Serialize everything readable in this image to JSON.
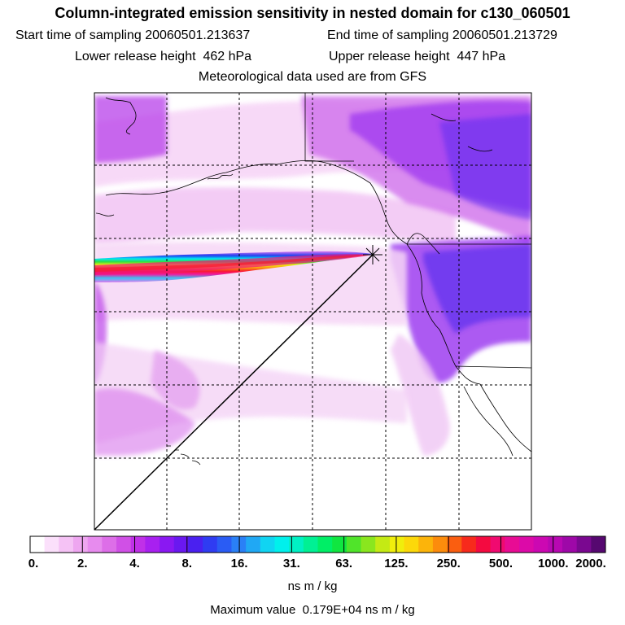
{
  "header": {
    "title": "Column-integrated emission sensitivity in nested domain for c130_060501",
    "start_label": "Start time of sampling",
    "start_value": "20060501.213637",
    "end_label": "End time of sampling",
    "end_value": "20060501.213729",
    "lower_label": "Lower release height",
    "lower_value": "462 hPa",
    "upper_label": "Upper release height",
    "upper_value": "447 hPa",
    "met_text": "Meteorological data used are from GFS"
  },
  "colorbar": {
    "labels": [
      "0.",
      "2.",
      "4.",
      "8.",
      "16.",
      "31.",
      "63.",
      "125.",
      "250.",
      "500.",
      "1000.",
      "2000."
    ],
    "colors": [
      "#ffffff",
      "#fbe0fb",
      "#f5c2f5",
      "#eea6f0",
      "#e78bee",
      "#dd6ee8",
      "#d050e6",
      "#c030e8",
      "#a820f0",
      "#8a18f2",
      "#6a18f0",
      "#4a20f0",
      "#2f3cf2",
      "#2a5cf4",
      "#2a80f6",
      "#20a8f4",
      "#10d4f2",
      "#00f0ec",
      "#00f0c4",
      "#00f094",
      "#00ee66",
      "#10e640",
      "#50e42a",
      "#8ae61e",
      "#c4ea14",
      "#f0ee0c",
      "#fcd80a",
      "#fcb40a",
      "#fc8c0c",
      "#fa5e10",
      "#f72a1c",
      "#f40a40",
      "#f00a70",
      "#e80c94",
      "#dc0aa8",
      "#cc08b2",
      "#b808b2",
      "#9e08a8",
      "#7a0890",
      "#560870"
    ],
    "units": "ns m / kg"
  },
  "footer": {
    "max_label": "Maximum value",
    "max_value": "0.179E+04",
    "max_units": "ns m / kg"
  }
}
